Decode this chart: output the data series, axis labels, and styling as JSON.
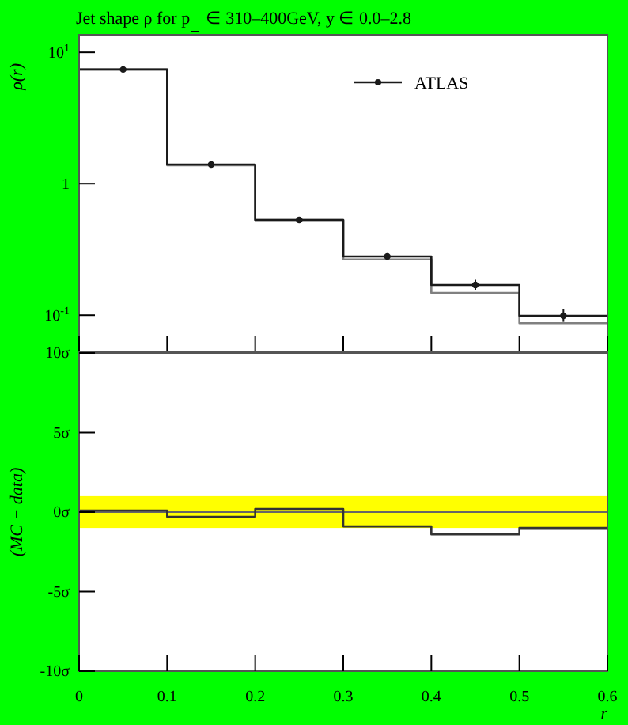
{
  "chart_data": [
    {
      "type": "step",
      "title": "Jet shape ρ for p$_{⊥}$ ∈ 310–400GeV, y ∈ 0.0–2.8",
      "ylabel": "ρ(r)",
      "x": [
        0,
        0.1,
        0.2,
        0.3,
        0.4,
        0.5,
        0.6
      ],
      "xlim": [
        0,
        0.6
      ],
      "ylim": [
        0.053,
        13.6
      ],
      "log": "y",
      "yticks": [
        {
          "value": 0.1,
          "label": "10$^{-1}$"
        },
        1,
        {
          "value": 10,
          "label": "10$^{1}$"
        }
      ],
      "xticks": [
        {
          "value": 0,
          "label": null
        },
        {
          "value": 0.1,
          "label": null
        },
        {
          "value": 0.2,
          "label": null
        },
        {
          "value": 0.3,
          "label": null
        },
        {
          "value": 0.4,
          "label": null
        },
        {
          "value": 0.5,
          "label": null
        },
        {
          "value": 0.6,
          "label": null
        }
      ],
      "tick_labels": "y",
      "legend": "top right",
      "series": [
        {
          "color": "#808080",
          "values": [
            7.4,
            1.38,
            0.53,
            0.266,
            0.148,
            0.087,
            0.087
          ]
        },
        {
          "color": "#1a1a1a",
          "values": [
            7.4,
            1.4,
            0.53,
            0.28,
            0.17,
            0.099,
            0.099
          ]
        },
        {
          "name": "ATLAS",
          "type": "scatter",
          "color": "#1a1a1a",
          "marker": "circle",
          "x": [
            0.05,
            0.15,
            0.25,
            0.35,
            0.45,
            0.55
          ],
          "values": [
            7.4,
            1.4,
            0.53,
            0.28,
            0.17,
            0.099
          ],
          "errors": [
            null,
            null,
            null,
            null,
            [
              0.155,
              0.186
            ],
            [
              0.089,
              0.112
            ]
          ]
        }
      ]
    },
    {
      "type": "step",
      "ylabel": "(MC − data)",
      "xlabel": "r",
      "x": [
        0,
        0.1,
        0.2,
        0.3,
        0.4,
        0.5,
        0.6
      ],
      "xlim": [
        0,
        0.6
      ],
      "ylim": [
        -10,
        10
      ],
      "xticks": [
        0,
        0.1,
        0.2,
        0.3,
        0.4,
        0.5,
        0.6
      ],
      "yticks": [
        {
          "value": -10,
          "label": "-10σ"
        },
        {
          "value": -5,
          "label": "-5σ"
        },
        {
          "value": 0,
          "label": "0σ"
        },
        {
          "value": 5,
          "label": "5σ"
        },
        {
          "value": 10,
          "label": "10σ"
        }
      ],
      "bands": [
        {
          "axis": "y",
          "from": -1,
          "to": 1,
          "color": "#ffff00"
        }
      ],
      "ref_lines": [
        {
          "axis": "y",
          "value": 0,
          "color": "#666666"
        }
      ],
      "series": [
        {
          "color": "#333333",
          "values": [
            0.1,
            -0.3,
            0.2,
            -0.9,
            -1.4,
            -1,
            -1
          ]
        }
      ]
    }
  ]
}
